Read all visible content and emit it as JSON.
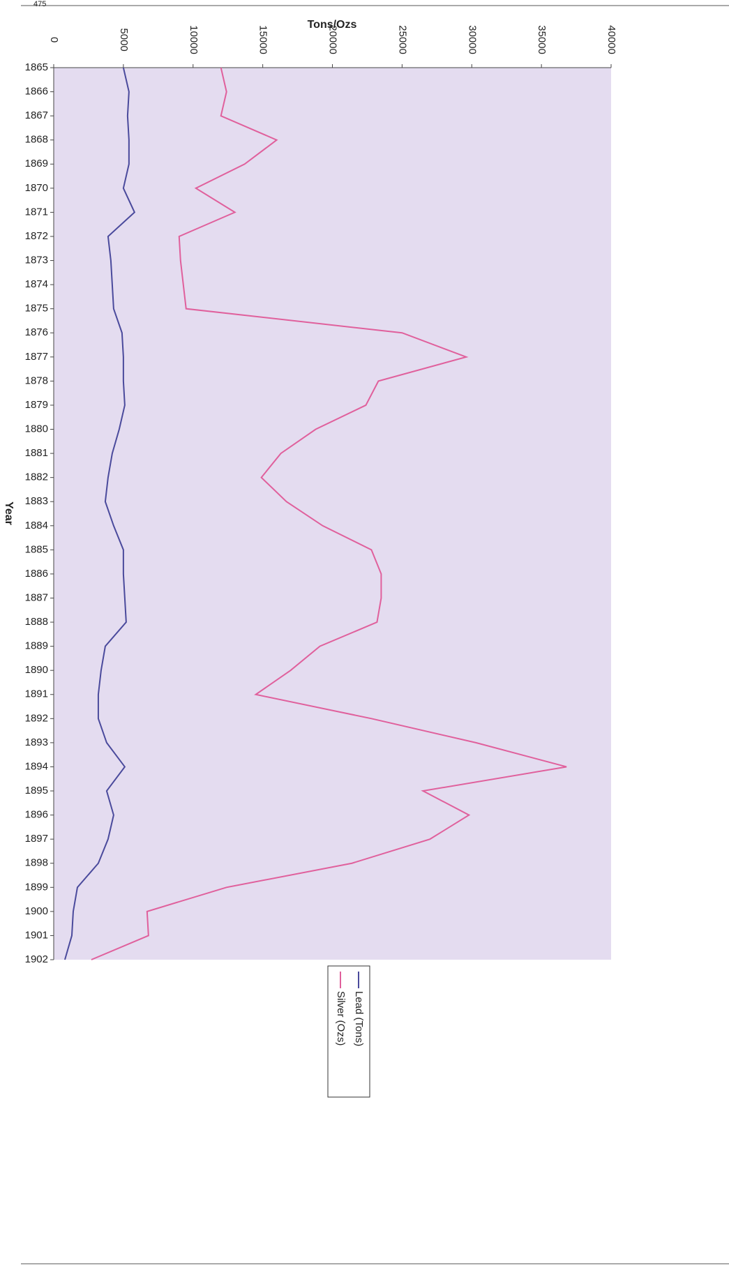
{
  "page_number": "475",
  "chart_data": {
    "type": "line",
    "title": "Tons/Ozs",
    "y_axis_label": "Year",
    "categories": [
      "1865",
      "1866",
      "1867",
      "1868",
      "1869",
      "1870",
      "1871",
      "1872",
      "1873",
      "1874",
      "1875",
      "1876",
      "1877",
      "1878",
      "1879",
      "1880",
      "1881",
      "1882",
      "1883",
      "1884",
      "1885",
      "1886",
      "1887",
      "1888",
      "1889",
      "1890",
      "1891",
      "1892",
      "1893",
      "1894",
      "1895",
      "1896",
      "1897",
      "1898",
      "1899",
      "1900",
      "1901",
      "1902"
    ],
    "series": [
      {
        "name": "Lead (Tons)",
        "color": "#4a4a9c",
        "values": [
          5000,
          5400,
          5300,
          5400,
          5400,
          5000,
          5800,
          3900,
          4100,
          4200,
          4300,
          4900,
          5000,
          5000,
          5100,
          4700,
          4200,
          3900,
          3700,
          4300,
          5000,
          5000,
          5100,
          5200,
          3700,
          3400,
          3200,
          3200,
          3800,
          5100,
          3800,
          4300,
          3900,
          3200,
          1700,
          1400,
          1300,
          800
        ]
      },
      {
        "name": "Silver (Ozs)",
        "color": "#e0609c",
        "values": [
          12000,
          12400,
          12000,
          16000,
          13700,
          10200,
          13000,
          9000,
          9100,
          9300,
          9500,
          25000,
          29600,
          23300,
          22400,
          18800,
          16300,
          14900,
          16700,
          19300,
          22800,
          23500,
          23500,
          23200,
          19100,
          17000,
          14500,
          22800,
          30300,
          36800,
          26500,
          29800,
          27000,
          21400,
          12400,
          6700,
          6800,
          2700
        ]
      }
    ],
    "xlim": [
      0,
      40000
    ],
    "xticks": [
      0,
      5000,
      10000,
      15000,
      20000,
      25000,
      30000,
      35000,
      40000
    ],
    "grid": false,
    "legend": "bottom"
  }
}
